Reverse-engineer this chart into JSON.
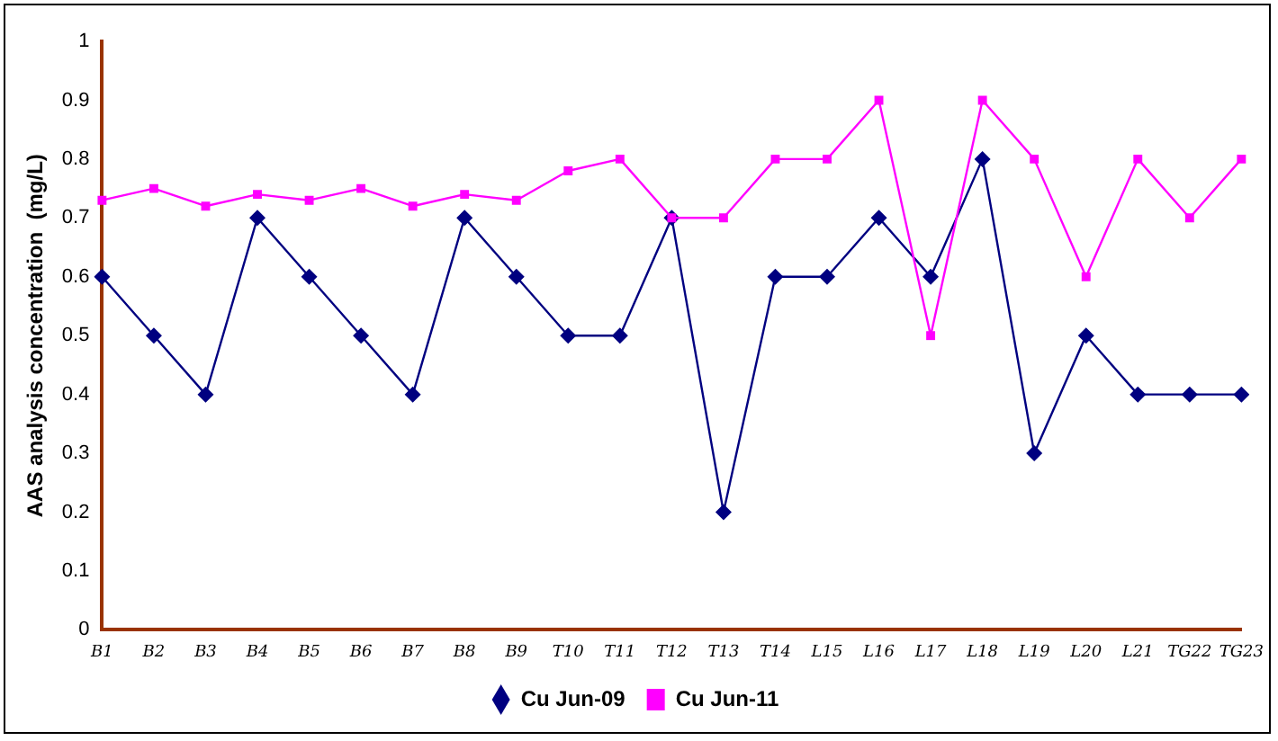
{
  "chart_data": {
    "type": "line",
    "ylabel": "AAS analysis concentration  (mg/L)",
    "categories": [
      "B1",
      "B2",
      "B3",
      "B4",
      "B5",
      "B6",
      "B7",
      "B8",
      "B9",
      "T10",
      "T11",
      "T12",
      "T13",
      "T14",
      "L15",
      "L16",
      "L17",
      "L18",
      "L19",
      "L20",
      "L21",
      "TG22",
      "TG23"
    ],
    "series": [
      {
        "name": "Cu Jun-09",
        "color": "#000080",
        "marker": "diamond",
        "values": [
          0.6,
          0.5,
          0.4,
          0.7,
          0.6,
          0.5,
          0.4,
          0.7,
          0.6,
          0.5,
          0.5,
          0.7,
          0.2,
          0.6,
          0.6,
          0.7,
          0.6,
          0.8,
          0.3,
          0.5,
          0.4,
          0.4,
          0.4
        ]
      },
      {
        "name": "Cu Jun-11",
        "color": "#ff00ff",
        "marker": "square",
        "values": [
          0.73,
          0.75,
          0.72,
          0.74,
          0.73,
          0.75,
          0.72,
          0.74,
          0.73,
          0.78,
          0.8,
          0.7,
          0.7,
          0.8,
          0.8,
          0.9,
          0.5,
          0.9,
          0.8,
          0.6,
          0.8,
          0.7,
          0.8
        ]
      }
    ],
    "ylim": [
      0,
      1
    ],
    "yticks": [
      0,
      0.1,
      0.2,
      0.3,
      0.4,
      0.5,
      0.6,
      0.7,
      0.8,
      0.9,
      1
    ],
    "grid": false,
    "legend": "bottom"
  }
}
